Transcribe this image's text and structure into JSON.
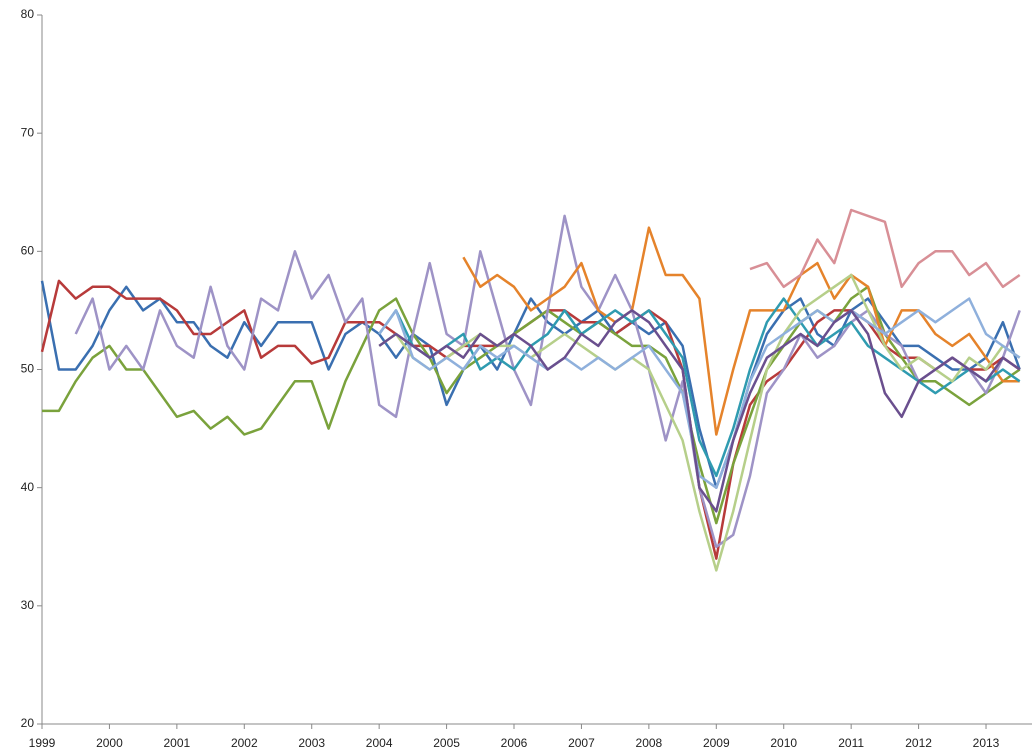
{
  "chart_data": {
    "type": "line",
    "x": [
      1999,
      1999.25,
      1999.5,
      1999.75,
      2000,
      2000.25,
      2000.5,
      2000.75,
      2001,
      2001.25,
      2001.5,
      2001.75,
      2002,
      2002.25,
      2002.5,
      2002.75,
      2003,
      2003.25,
      2003.5,
      2003.75,
      2004,
      2004.25,
      2004.5,
      2004.75,
      2005,
      2005.25,
      2005.5,
      2005.75,
      2006,
      2006.25,
      2006.5,
      2006.75,
      2007,
      2007.25,
      2007.5,
      2007.75,
      2008,
      2008.25,
      2008.5,
      2008.75,
      2009,
      2009.25,
      2009.5,
      2009.75,
      2010,
      2010.25,
      2010.5,
      2010.75,
      2011,
      2011.25,
      2011.5,
      2011.75,
      2012,
      2012.25,
      2012.5,
      2012.75,
      2013,
      2013.25,
      2013.5
    ],
    "series": [
      {
        "color": "#3a6fb0",
        "values": [
          57.5,
          50,
          50,
          52,
          55,
          57,
          55,
          56,
          54,
          54,
          52,
          51,
          54,
          52,
          54,
          54,
          54,
          50,
          53,
          54,
          53,
          51,
          53,
          52,
          47,
          50,
          52,
          50,
          53,
          56,
          54,
          53,
          54,
          55,
          53,
          54,
          53,
          54,
          52,
          45,
          40,
          44,
          49,
          53,
          55,
          56,
          53,
          52,
          55,
          56,
          54,
          52,
          52,
          51,
          50,
          50,
          51,
          54,
          50
        ]
      },
      {
        "color": "#b73a3a",
        "values": [
          51.5,
          57.5,
          56,
          57,
          57,
          56,
          56,
          56,
          55,
          53,
          53,
          54,
          55,
          51,
          52,
          52,
          50.5,
          51,
          54,
          54,
          54,
          53,
          52,
          52,
          51,
          52,
          52,
          52,
          53,
          54,
          55,
          55,
          54,
          54,
          53,
          54,
          55,
          54,
          50,
          40,
          34,
          42,
          47,
          49,
          50,
          52,
          54,
          55,
          55,
          54,
          52,
          51,
          51,
          50,
          51,
          50,
          50,
          51,
          50
        ]
      },
      {
        "color": "#7aa23c",
        "values": [
          46.5,
          46.5,
          49,
          51,
          52,
          50,
          50,
          48,
          46,
          46.5,
          45,
          46,
          44.5,
          45,
          47,
          49,
          49,
          45,
          49,
          52,
          55,
          56,
          53,
          51,
          48,
          50,
          51,
          52,
          53,
          54,
          55,
          54,
          53,
          54,
          53,
          52,
          52,
          51,
          48,
          42,
          37,
          42,
          46,
          50,
          52,
          54,
          55,
          54,
          56,
          57,
          53,
          51,
          49,
          49,
          48,
          47,
          48,
          49,
          50
        ]
      },
      {
        "color": "#9e93c6",
        "values": [
          null,
          null,
          53,
          56,
          50,
          52,
          50,
          55,
          52,
          51,
          57,
          52,
          50,
          56,
          55,
          60,
          56,
          58,
          54,
          56,
          47,
          46,
          53,
          59,
          53,
          52,
          60,
          55,
          50,
          47,
          55,
          63,
          57,
          55,
          58,
          55,
          50,
          44,
          49,
          40,
          35,
          36,
          41,
          48,
          50,
          53,
          51,
          52,
          54,
          55,
          53,
          52,
          49,
          50,
          51,
          50,
          48,
          51,
          55
        ]
      },
      {
        "color": "#e5832b",
        "values": [
          null,
          null,
          null,
          null,
          null,
          null,
          null,
          null,
          null,
          null,
          null,
          null,
          null,
          null,
          null,
          null,
          null,
          null,
          null,
          null,
          null,
          null,
          null,
          null,
          null,
          59.5,
          57,
          58,
          57,
          55,
          56,
          57,
          59,
          55,
          54,
          55,
          62,
          58,
          58,
          56,
          44.5,
          50,
          55,
          55,
          55,
          58,
          59,
          56,
          58,
          57,
          52,
          55,
          55,
          53,
          52,
          53,
          51,
          49,
          49
        ]
      },
      {
        "color": "#d88f96",
        "values": [
          null,
          null,
          null,
          null,
          null,
          null,
          null,
          null,
          null,
          null,
          null,
          null,
          null,
          null,
          null,
          null,
          null,
          null,
          null,
          null,
          null,
          null,
          null,
          null,
          null,
          null,
          null,
          null,
          null,
          null,
          null,
          null,
          null,
          null,
          null,
          null,
          null,
          null,
          null,
          null,
          null,
          null,
          58.5,
          59,
          57,
          58,
          61,
          59,
          63.5,
          63,
          62.5,
          57,
          59,
          60,
          60,
          58,
          59,
          57,
          58
        ]
      },
      {
        "color": "#2f9bb0",
        "values": [
          null,
          null,
          null,
          null,
          null,
          null,
          null,
          null,
          null,
          null,
          null,
          null,
          null,
          null,
          null,
          null,
          null,
          null,
          null,
          null,
          53,
          55,
          52,
          51,
          52,
          53,
          50,
          51,
          50,
          52,
          53,
          55,
          53,
          54,
          55,
          54,
          55,
          53,
          51,
          44,
          41,
          45,
          50,
          54,
          56,
          54,
          52,
          53,
          54,
          52,
          51,
          50,
          49,
          48,
          49,
          50,
          49,
          50,
          49
        ]
      },
      {
        "color": "#b6cf8a",
        "values": [
          null,
          null,
          null,
          null,
          null,
          null,
          null,
          null,
          null,
          null,
          null,
          null,
          null,
          null,
          null,
          null,
          null,
          null,
          null,
          null,
          52,
          53,
          51,
          50,
          51,
          52,
          53,
          52,
          52,
          51,
          52,
          53,
          52,
          51,
          50,
          51,
          50,
          47,
          44,
          38,
          33,
          38,
          44,
          50,
          53,
          55,
          56,
          57,
          58,
          55,
          52,
          50,
          51,
          50,
          49,
          51,
          50,
          52,
          51
        ]
      },
      {
        "color": "#8fb0dc",
        "values": [
          null,
          null,
          null,
          null,
          null,
          null,
          null,
          null,
          null,
          null,
          null,
          null,
          null,
          null,
          null,
          null,
          null,
          null,
          null,
          null,
          53,
          55,
          51,
          50,
          51,
          50,
          52,
          51,
          52,
          51,
          50,
          51,
          50,
          51,
          50,
          51,
          52,
          50,
          48,
          41,
          40,
          44,
          49,
          52,
          53,
          54,
          55,
          54,
          55,
          54,
          53,
          54,
          55,
          54,
          55,
          56,
          53,
          52,
          51
        ]
      },
      {
        "color": "#6a4f8e",
        "values": [
          null,
          null,
          null,
          null,
          null,
          null,
          null,
          null,
          null,
          null,
          null,
          null,
          null,
          null,
          null,
          null,
          null,
          null,
          null,
          null,
          52,
          53,
          52,
          51,
          52,
          51,
          53,
          52,
          53,
          52,
          50,
          51,
          53,
          52,
          54,
          55,
          54,
          52,
          50,
          40,
          38,
          44,
          48,
          51,
          52,
          53,
          52,
          54,
          55,
          53,
          48,
          46,
          49,
          50,
          51,
          50,
          49,
          51,
          50
        ]
      }
    ],
    "xlim": [
      1999,
      2013.68
    ],
    "xticks": [
      1999,
      2000,
      2001,
      2002,
      2003,
      2004,
      2005,
      2006,
      2007,
      2008,
      2009,
      2010,
      2011,
      2012,
      2013
    ],
    "ylim": [
      20,
      80
    ],
    "yticks": [
      20,
      30,
      40,
      50,
      60,
      70,
      80
    ]
  }
}
